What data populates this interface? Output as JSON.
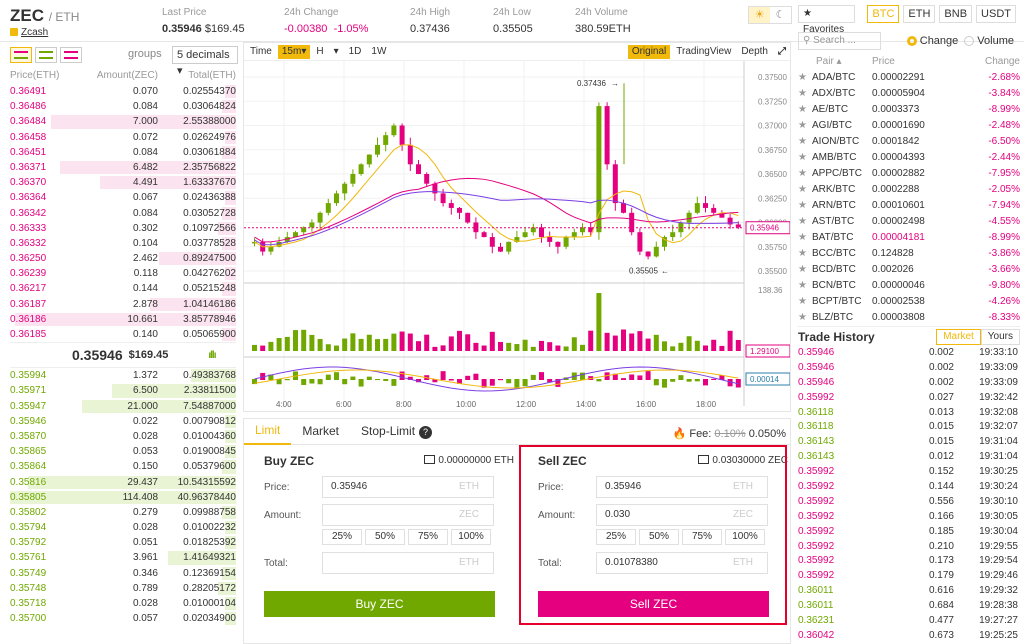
{
  "header": {
    "base": "ZEC",
    "quote": "/ ETH",
    "coin_link": "Zcash",
    "stats": [
      {
        "label": "Last Price",
        "value": "0.35946",
        "sub": "$169.45"
      },
      {
        "label": "24h Change",
        "value": "-0.00380",
        "sub": "-1.05%"
      },
      {
        "label": "24h High",
        "value": "0.37436"
      },
      {
        "label": "24h Low",
        "value": "0.35505"
      },
      {
        "label": "24h Volume",
        "value": "380.59ETH"
      }
    ],
    "theme_light": "☀",
    "theme_dark": "☾"
  },
  "orderbook": {
    "groups_label": "groups",
    "groups_value": "5 decimals ▾",
    "col_price": "Price(ETH)",
    "col_amount": "Amount(ZEC)",
    "col_total": "Total(ETH)",
    "asks": [
      {
        "p": "0.36491",
        "a": "0.070",
        "t": "0.02554370",
        "d": 0.05
      },
      {
        "p": "0.36486",
        "a": "0.084",
        "t": "0.03064824",
        "d": 0.06
      },
      {
        "p": "0.36484",
        "a": "7.000",
        "t": "2.55388000",
        "d": 0.82
      },
      {
        "p": "0.36458",
        "a": "0.072",
        "t": "0.02624976",
        "d": 0.05
      },
      {
        "p": "0.36451",
        "a": "0.084",
        "t": "0.03061884",
        "d": 0.06
      },
      {
        "p": "0.36371",
        "a": "6.482",
        "t": "2.35756822",
        "d": 0.78
      },
      {
        "p": "0.36370",
        "a": "4.491",
        "t": "1.63337670",
        "d": 0.6
      },
      {
        "p": "0.36364",
        "a": "0.067",
        "t": "0.02436388",
        "d": 0.05
      },
      {
        "p": "0.36342",
        "a": "0.084",
        "t": "0.03052728",
        "d": 0.06
      },
      {
        "p": "0.36333",
        "a": "0.302",
        "t": "0.10972566",
        "d": 0.08
      },
      {
        "p": "0.36332",
        "a": "0.104",
        "t": "0.03778528",
        "d": 0.06
      },
      {
        "p": "0.36250",
        "a": "2.462",
        "t": "0.89247500",
        "d": 0.34
      },
      {
        "p": "0.36239",
        "a": "0.118",
        "t": "0.04276202",
        "d": 0.05
      },
      {
        "p": "0.36217",
        "a": "0.144",
        "t": "0.05215248",
        "d": 0.06
      },
      {
        "p": "0.36187",
        "a": "2.878",
        "t": "1.04146186",
        "d": 0.38
      },
      {
        "p": "0.36186",
        "a": "10.661",
        "t": "3.85778946",
        "d": 0.98
      },
      {
        "p": "0.36185",
        "a": "0.140",
        "t": "0.05065900",
        "d": 0.06
      }
    ],
    "last_price": "0.35946",
    "last_usd": "$169.45",
    "signal": "ıllı",
    "bids": [
      {
        "p": "0.35994",
        "a": "1.372",
        "t": "0.49383768",
        "d": 0.2
      },
      {
        "p": "0.35971",
        "a": "6.500",
        "t": "2.33811500",
        "d": 0.55
      },
      {
        "p": "0.35947",
        "a": "21.000",
        "t": "7.54887000",
        "d": 0.68
      },
      {
        "p": "0.35946",
        "a": "0.022",
        "t": "0.00790812",
        "d": 0.05
      },
      {
        "p": "0.35870",
        "a": "0.028",
        "t": "0.01004360",
        "d": 0.05
      },
      {
        "p": "0.35865",
        "a": "0.053",
        "t": "0.01900845",
        "d": 0.05
      },
      {
        "p": "0.35864",
        "a": "0.150",
        "t": "0.05379600",
        "d": 0.06
      },
      {
        "p": "0.35816",
        "a": "29.437",
        "t": "10.54315592",
        "d": 0.92
      },
      {
        "p": "0.35805",
        "a": "114.408",
        "t": "40.96378440",
        "d": 1.0
      },
      {
        "p": "0.35802",
        "a": "0.279",
        "t": "0.09988758",
        "d": 0.06
      },
      {
        "p": "0.35794",
        "a": "0.028",
        "t": "0.01002232",
        "d": 0.05
      },
      {
        "p": "0.35792",
        "a": "0.051",
        "t": "0.01825392",
        "d": 0.05
      },
      {
        "p": "0.35761",
        "a": "3.961",
        "t": "1.41649321",
        "d": 0.3
      },
      {
        "p": "0.35749",
        "a": "0.346",
        "t": "0.12369154",
        "d": 0.06
      },
      {
        "p": "0.35748",
        "a": "0.789",
        "t": "0.28205172",
        "d": 0.08
      },
      {
        "p": "0.35718",
        "a": "0.028",
        "t": "0.01000104",
        "d": 0.05
      },
      {
        "p": "0.35700",
        "a": "0.057",
        "t": "0.02034900",
        "d": 0.05
      }
    ]
  },
  "chart": {
    "time_label": "Time",
    "intervals": [
      "15m▾",
      "H",
      "▾",
      "1D",
      "1W"
    ],
    "views": [
      "Original",
      "TradingView",
      "Depth"
    ],
    "expand_icon": "⤢",
    "price_ticks": [
      "0.37500",
      "0.37250",
      "0.37000",
      "0.36750",
      "0.36500",
      "0.36250",
      "0.36000",
      "0.35750",
      "0.35500"
    ],
    "current_tag": "0.35946",
    "high_note": "0.37436",
    "low_note": "0.35505",
    "vol_max": "138.36",
    "vol_tag": "1.29100",
    "macd_tag": "0.00014",
    "time_ticks": [
      "4:00",
      "6:00",
      "8:00",
      "10:00",
      "12:00",
      "14:00",
      "16:00",
      "18:00"
    ],
    "colors": {
      "up": "#70a800",
      "down": "#e4007f",
      "ma1": "#f0b90b",
      "ma2": "#e4007f",
      "ma3": "#7b3fe4"
    }
  },
  "form": {
    "tabs": [
      "Limit",
      "Market",
      "Stop-Limit"
    ],
    "help_icon": "?",
    "fee_label": "Fee:",
    "fee_old": "0.10%",
    "fee_new": "0.050%",
    "buy": {
      "title": "Buy ZEC",
      "balance": "0.00000000 ETH",
      "price_label": "Price:",
      "price": "0.35946",
      "price_unit": "ETH",
      "amount_label": "Amount:",
      "amount": "",
      "amount_unit": "ZEC",
      "pcts": [
        "25%",
        "50%",
        "75%",
        "100%"
      ],
      "total_label": "Total:",
      "total": "",
      "total_unit": "ETH",
      "button": "Buy ZEC"
    },
    "sell": {
      "title": "Sell ZEC",
      "balance": "0.03030000 ZEC",
      "price_label": "Price:",
      "price": "0.35946",
      "price_unit": "ETH",
      "amount_label": "Amount:",
      "amount": "0.030",
      "amount_unit": "ZEC",
      "pcts": [
        "25%",
        "50%",
        "75%",
        "100%"
      ],
      "total_label": "Total:",
      "total": "0.01078380",
      "total_unit": "ETH",
      "button": "Sell ZEC"
    }
  },
  "market": {
    "favorites": "★ Favorites",
    "quotes": [
      "BTC",
      "ETH",
      "BNB",
      "USDT"
    ],
    "search_placeholder": "Search ...",
    "radio_change": "Change",
    "radio_volume": "Volume",
    "col_pair": "Pair ▴",
    "col_price": "Price",
    "col_change": "Change",
    "rows": [
      {
        "pair": "ADA/BTC",
        "price": "0.00002291",
        "change": "-2.68%"
      },
      {
        "pair": "ADX/BTC",
        "price": "0.00005904",
        "change": "-3.84%"
      },
      {
        "pair": "AE/BTC",
        "price": "0.0003373",
        "change": "-8.99%"
      },
      {
        "pair": "AGI/BTC",
        "price": "0.00001690",
        "change": "-2.48%"
      },
      {
        "pair": "AION/BTC",
        "price": "0.0001842",
        "change": "-6.50%"
      },
      {
        "pair": "AMB/BTC",
        "price": "0.00004393",
        "change": "-2.44%"
      },
      {
        "pair": "APPC/BTC",
        "price": "0.00002882",
        "change": "-7.95%"
      },
      {
        "pair": "ARK/BTC",
        "price": "0.0002288",
        "change": "-2.05%"
      },
      {
        "pair": "ARN/BTC",
        "price": "0.00010601",
        "change": "-7.94%"
      },
      {
        "pair": "AST/BTC",
        "price": "0.00002498",
        "change": "-4.55%"
      },
      {
        "pair": "BAT/BTC",
        "price": "0.00004181",
        "change": "-8.99%",
        "hl": true
      },
      {
        "pair": "BCC/BTC",
        "price": "0.124828",
        "change": "-3.86%"
      },
      {
        "pair": "BCD/BTC",
        "price": "0.002026",
        "change": "-3.66%"
      },
      {
        "pair": "BCN/BTC",
        "price": "0.00000046",
        "change": "-9.80%"
      },
      {
        "pair": "BCPT/BTC",
        "price": "0.00002538",
        "change": "-4.26%"
      },
      {
        "pair": "BLZ/BTC",
        "price": "0.00003808",
        "change": "-8.33%"
      }
    ]
  },
  "trades": {
    "title": "Trade History",
    "tab_market": "Market",
    "tab_yours": "Yours",
    "rows": [
      {
        "p": "0.35946",
        "a": "0.002",
        "t": "19:33:10",
        "s": "dn"
      },
      {
        "p": "0.35946",
        "a": "0.002",
        "t": "19:33:09",
        "s": "dn"
      },
      {
        "p": "0.35946",
        "a": "0.002",
        "t": "19:33:09",
        "s": "dn"
      },
      {
        "p": "0.35992",
        "a": "0.027",
        "t": "19:32:42",
        "s": "dn"
      },
      {
        "p": "0.36118",
        "a": "0.013",
        "t": "19:32:08",
        "s": "up"
      },
      {
        "p": "0.36118",
        "a": "0.015",
        "t": "19:32:07",
        "s": "up"
      },
      {
        "p": "0.36143",
        "a": "0.015",
        "t": "19:31:04",
        "s": "up"
      },
      {
        "p": "0.36143",
        "a": "0.012",
        "t": "19:31:04",
        "s": "up"
      },
      {
        "p": "0.35992",
        "a": "0.152",
        "t": "19:30:25",
        "s": "dn"
      },
      {
        "p": "0.35992",
        "a": "0.144",
        "t": "19:30:24",
        "s": "dn"
      },
      {
        "p": "0.35992",
        "a": "0.556",
        "t": "19:30:10",
        "s": "dn"
      },
      {
        "p": "0.35992",
        "a": "0.166",
        "t": "19:30:05",
        "s": "dn"
      },
      {
        "p": "0.35992",
        "a": "0.185",
        "t": "19:30:04",
        "s": "dn"
      },
      {
        "p": "0.35992",
        "a": "0.210",
        "t": "19:29:55",
        "s": "dn"
      },
      {
        "p": "0.35992",
        "a": "0.173",
        "t": "19:29:54",
        "s": "dn"
      },
      {
        "p": "0.35992",
        "a": "0.179",
        "t": "19:29:46",
        "s": "dn"
      },
      {
        "p": "0.36011",
        "a": "0.616",
        "t": "19:29:32",
        "s": "up"
      },
      {
        "p": "0.36011",
        "a": "0.684",
        "t": "19:28:38",
        "s": "up"
      },
      {
        "p": "0.36231",
        "a": "0.477",
        "t": "19:27:27",
        "s": "up"
      },
      {
        "p": "0.36042",
        "a": "0.673",
        "t": "19:25:25",
        "s": "dn"
      }
    ]
  }
}
